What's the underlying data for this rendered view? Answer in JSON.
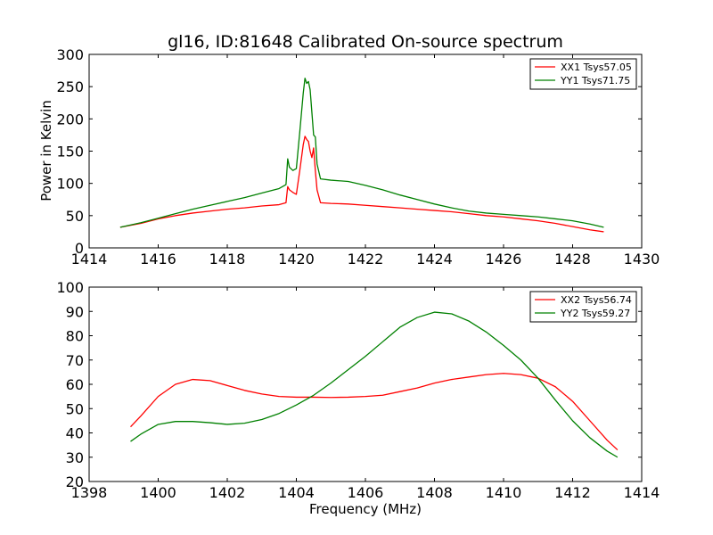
{
  "chart_data": [
    {
      "type": "line",
      "title": "gl16, ID:81648 Calibrated On-source spectrum",
      "xlabel": "",
      "ylabel": "Power in Kelvin",
      "xlim": [
        1414,
        1430
      ],
      "ylim": [
        0,
        300
      ],
      "xticks": [
        "1414",
        "1416",
        "1418",
        "1420",
        "1422",
        "1424",
        "1426",
        "1428",
        "1430"
      ],
      "yticks": [
        "0",
        "50",
        "100",
        "150",
        "200",
        "250",
        "300"
      ],
      "legend_position": "top-right",
      "grid": false,
      "series": [
        {
          "name": "XX1 Tsys57.05",
          "color": "#ff0000",
          "x": [
            1414.9,
            1415.5,
            1416,
            1416.5,
            1417,
            1417.5,
            1418,
            1418.5,
            1419,
            1419.5,
            1419.7,
            1419.75,
            1419.8,
            1419.9,
            1420.0,
            1420.1,
            1420.2,
            1420.25,
            1420.3,
            1420.35,
            1420.4,
            1420.45,
            1420.5,
            1420.55,
            1420.6,
            1420.7,
            1421,
            1421.5,
            1422,
            1422.5,
            1423,
            1423.5,
            1424,
            1424.5,
            1425,
            1425.5,
            1426,
            1426.5,
            1427,
            1427.5,
            1428,
            1428.5,
            1428.9
          ],
          "y": [
            32,
            38,
            45,
            50,
            54,
            57,
            60,
            62,
            65,
            67,
            70,
            95,
            90,
            86,
            83,
            120,
            160,
            173,
            168,
            165,
            150,
            140,
            155,
            120,
            90,
            70,
            69,
            68,
            66,
            64,
            62,
            60,
            58,
            56,
            53,
            50,
            48,
            45,
            42,
            38,
            33,
            28,
            25
          ]
        },
        {
          "name": "YY1 Tsys71.75",
          "color": "#008000",
          "x": [
            1414.9,
            1415.5,
            1416,
            1416.5,
            1417,
            1417.5,
            1418,
            1418.5,
            1419,
            1419.5,
            1419.7,
            1419.75,
            1419.8,
            1419.9,
            1420.0,
            1420.1,
            1420.2,
            1420.25,
            1420.3,
            1420.35,
            1420.4,
            1420.45,
            1420.5,
            1420.55,
            1420.6,
            1420.7,
            1421,
            1421.5,
            1422,
            1422.5,
            1423,
            1423.5,
            1424,
            1424.5,
            1425,
            1425.5,
            1426,
            1426.5,
            1427,
            1427.5,
            1428,
            1428.5,
            1428.9
          ],
          "y": [
            32,
            39,
            46,
            53,
            60,
            66,
            72,
            78,
            85,
            92,
            98,
            138,
            125,
            120,
            123,
            180,
            240,
            263,
            255,
            258,
            245,
            210,
            175,
            172,
            130,
            107,
            105,
            103,
            97,
            90,
            82,
            75,
            68,
            62,
            57,
            54,
            52,
            50,
            48,
            45,
            42,
            37,
            32
          ]
        }
      ]
    },
    {
      "type": "line",
      "title": "",
      "xlabel": "Frequency (MHz)",
      "ylabel": "",
      "xlim": [
        1398,
        1414
      ],
      "ylim": [
        20,
        100
      ],
      "xticks": [
        "1398",
        "1400",
        "1402",
        "1404",
        "1406",
        "1408",
        "1410",
        "1412",
        "1414"
      ],
      "yticks": [
        "20",
        "30",
        "40",
        "50",
        "60",
        "70",
        "80",
        "90",
        "100"
      ],
      "legend_position": "top-right",
      "grid": false,
      "series": [
        {
          "name": "XX2 Tsys56.74",
          "color": "#ff0000",
          "x": [
            1399.2,
            1399.5,
            1400,
            1400.5,
            1401,
            1401.5,
            1402,
            1402.5,
            1403,
            1403.5,
            1404,
            1404.5,
            1405,
            1405.5,
            1406,
            1406.5,
            1407,
            1407.5,
            1408,
            1408.5,
            1409,
            1409.5,
            1410,
            1410.5,
            1411,
            1411.5,
            1412,
            1412.5,
            1413,
            1413.3
          ],
          "y": [
            42.5,
            47,
            55,
            60,
            62,
            61.5,
            59.5,
            57.5,
            56,
            55,
            54.7,
            54.7,
            54.6,
            54.7,
            55,
            55.5,
            57,
            58.5,
            60.5,
            62,
            63,
            64,
            64.5,
            64,
            62.5,
            59,
            53,
            45,
            37,
            33
          ]
        },
        {
          "name": "YY2 Tsys59.27",
          "color": "#008000",
          "x": [
            1399.2,
            1399.5,
            1400,
            1400.5,
            1401,
            1401.5,
            1402,
            1402.5,
            1403,
            1403.5,
            1404,
            1404.5,
            1405,
            1405.5,
            1406,
            1406.5,
            1407,
            1407.5,
            1408,
            1408.5,
            1409,
            1409.5,
            1410,
            1410.5,
            1411,
            1411.5,
            1412,
            1412.5,
            1413,
            1413.3
          ],
          "y": [
            36.5,
            39.5,
            43.5,
            44.7,
            44.7,
            44.2,
            43.5,
            44,
            45.5,
            48,
            51.5,
            55.5,
            60.5,
            66,
            71.5,
            77.5,
            83.5,
            87.5,
            89.7,
            89,
            86,
            81.5,
            76,
            70,
            62.5,
            53.5,
            45,
            38,
            32.5,
            30
          ]
        }
      ]
    }
  ]
}
